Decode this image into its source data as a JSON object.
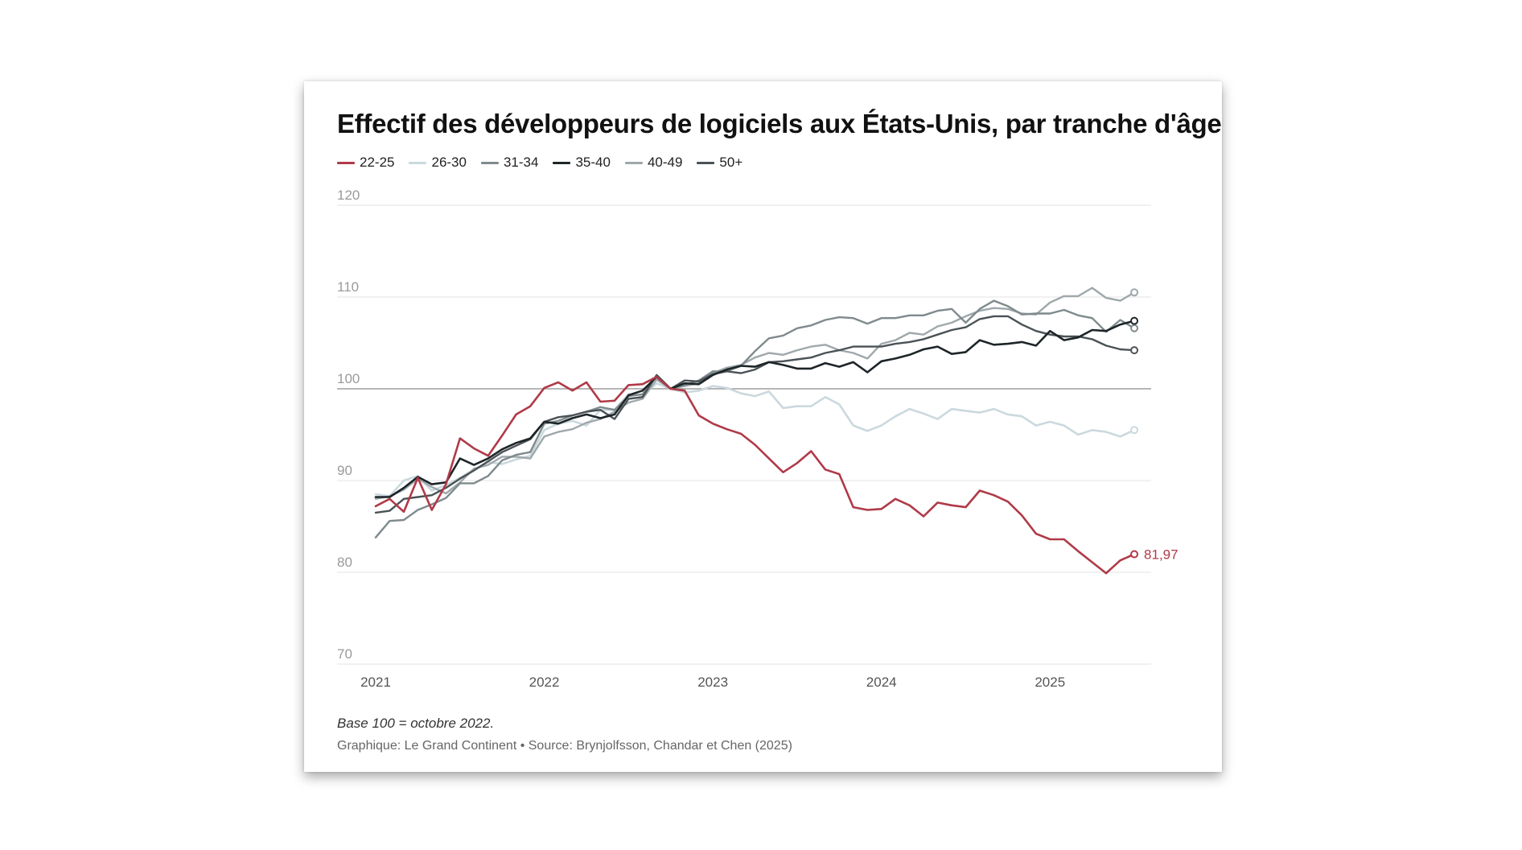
{
  "chart_data": {
    "type": "line",
    "title": "Effectif des développeurs de logiciels aux États-Unis, par tranche d'âge",
    "xlabel": "",
    "ylabel": "",
    "ylim": [
      70,
      120
    ],
    "yticks": [
      120,
      110,
      100,
      90,
      80,
      70
    ],
    "xticks": [
      2021,
      2022,
      2023,
      2024,
      2025
    ],
    "xlim": [
      2021,
      2025.6
    ],
    "reference_line": 100,
    "note": "Base 100 = octobre 2022.",
    "source": "Graphique: Le Grand Continent • Source: Brynjolfsson, Chandar et Chen (2025)",
    "end_label": "81,97",
    "x": [
      2021.0,
      2021.083,
      2021.167,
      2021.25,
      2021.333,
      2021.417,
      2021.5,
      2021.583,
      2021.667,
      2021.75,
      2021.833,
      2021.917,
      2022.0,
      2022.083,
      2022.167,
      2022.25,
      2022.333,
      2022.417,
      2022.5,
      2022.583,
      2022.667,
      2022.75,
      2022.833,
      2022.917,
      2023.0,
      2023.083,
      2023.167,
      2023.25,
      2023.333,
      2023.417,
      2023.5,
      2023.583,
      2023.667,
      2023.75,
      2023.833,
      2023.917,
      2024.0,
      2024.083,
      2024.167,
      2024.25,
      2024.333,
      2024.417,
      2024.5,
      2024.583,
      2024.667,
      2024.75,
      2024.833,
      2024.917,
      2025.0,
      2025.083,
      2025.167,
      2025.25,
      2025.333,
      2025.417,
      2025.5
    ],
    "series": [
      {
        "name": "22-25",
        "color": "#b03a48",
        "width": 2.6,
        "values": [
          87.2,
          88,
          86.6,
          90.3,
          86.8,
          89.6,
          94.6,
          93.5,
          92.7,
          94.9,
          97.2,
          98.1,
          100.1,
          100.7,
          99.8,
          100.7,
          98.6,
          98.7,
          100.4,
          100.5,
          101.3,
          100,
          99.8,
          97.1,
          96.2,
          95.6,
          95.1,
          93.9,
          92.4,
          90.9,
          91.9,
          93.2,
          91.2,
          90.7,
          87.1,
          86.8,
          86.9,
          88,
          87.3,
          86.1,
          87.6,
          87.3,
          87.1,
          88.9,
          88.4,
          87.7,
          86.2,
          84.2,
          83.6,
          83.6,
          82.3,
          81.1,
          79.9,
          81.3,
          81.97
        ]
      },
      {
        "name": "26-30",
        "color": "#cbd9de",
        "width": 2.6,
        "values": [
          88.5,
          88.3,
          90,
          90.5,
          88.9,
          89.5,
          90.3,
          91.2,
          92,
          91.8,
          92.3,
          92.7,
          95.5,
          96.2,
          96.5,
          96,
          97.7,
          97.7,
          99.4,
          99.3,
          100.6,
          100,
          99.6,
          99.8,
          100.3,
          100.1,
          99.5,
          99.2,
          99.7,
          97.9,
          98.1,
          98.1,
          99.1,
          98.3,
          96,
          95.4,
          96,
          97,
          97.8,
          97.3,
          96.7,
          97.8,
          97.6,
          97.4,
          97.8,
          97.2,
          97,
          96,
          96.4,
          96,
          95,
          95.5,
          95.3,
          94.8,
          95.5
        ]
      },
      {
        "name": "31-34",
        "color": "#7f8a8d",
        "width": 2.4,
        "values": [
          83.8,
          85.6,
          85.7,
          86.8,
          87.4,
          88.1,
          89.7,
          89.7,
          90.5,
          92.2,
          92.8,
          93.1,
          96.2,
          96.5,
          97.1,
          97.5,
          98,
          97.7,
          99.2,
          99.4,
          101.4,
          100,
          100.4,
          100.9,
          101.9,
          101.9,
          102.5,
          104.1,
          105.5,
          105.8,
          106.6,
          106.9,
          107.5,
          107.8,
          107.7,
          107.1,
          107.7,
          107.7,
          108,
          108,
          108.5,
          108.7,
          107.2,
          108.7,
          109.6,
          109,
          108.1,
          108.2,
          108.2,
          108.6,
          108,
          107.7,
          106.2,
          107.5,
          106.6
        ]
      },
      {
        "name": "35-40",
        "color": "#1d2528",
        "width": 2.6,
        "values": [
          88.2,
          88.2,
          89.2,
          90.4,
          89.6,
          89.8,
          92.4,
          91.7,
          92.4,
          93.4,
          94.1,
          94.6,
          96.4,
          96.2,
          96.8,
          97.2,
          96.8,
          97.2,
          99.3,
          99.8,
          101.3,
          100,
          100.6,
          100.5,
          101.5,
          102.1,
          102.5,
          102.4,
          102.9,
          102.6,
          102.2,
          102.2,
          102.8,
          102.4,
          102.9,
          101.8,
          103,
          103.3,
          103.7,
          104.3,
          104.6,
          103.8,
          104,
          105.3,
          104.8,
          104.9,
          105.1,
          104.7,
          106.3,
          105.3,
          105.6,
          106.4,
          106.3,
          107,
          107.4
        ]
      },
      {
        "name": "40-49",
        "color": "#9fa8ab",
        "width": 2.4,
        "values": [
          88,
          88.3,
          89,
          90.2,
          89.3,
          88.6,
          89.8,
          91.3,
          91.7,
          92.6,
          92.6,
          92.4,
          94.8,
          95.3,
          95.6,
          96.3,
          96.7,
          97.5,
          98.5,
          98.9,
          101,
          100,
          100.3,
          100.6,
          101.7,
          102.3,
          102.6,
          103.4,
          103.9,
          103.7,
          104.2,
          104.6,
          104.8,
          104.2,
          103.9,
          103.3,
          104.9,
          105.3,
          106.1,
          105.9,
          106.8,
          107.2,
          107.9,
          108.5,
          108.8,
          108.7,
          108.2,
          108.1,
          109.4,
          110.1,
          110.1,
          111,
          109.9,
          109.6,
          110.5
        ]
      },
      {
        "name": "50+",
        "color": "#4a5256",
        "width": 2.4,
        "values": [
          86.5,
          86.7,
          88,
          88.2,
          88.4,
          89.2,
          90.2,
          91.1,
          92.1,
          93.1,
          93.8,
          94.5,
          96.4,
          96.9,
          97.1,
          97.5,
          97.7,
          96.7,
          98.9,
          99.1,
          101.5,
          100,
          100.9,
          100.8,
          101.6,
          101.9,
          101.7,
          102.1,
          102.9,
          103,
          103.2,
          103.4,
          103.9,
          104.2,
          104.6,
          104.6,
          104.6,
          104.9,
          105.1,
          105.4,
          105.9,
          106.4,
          106.7,
          107.6,
          107.9,
          107.9,
          107,
          106.3,
          105.9,
          105.7,
          105.7,
          105.4,
          104.7,
          104.3,
          104.2
        ]
      }
    ]
  }
}
